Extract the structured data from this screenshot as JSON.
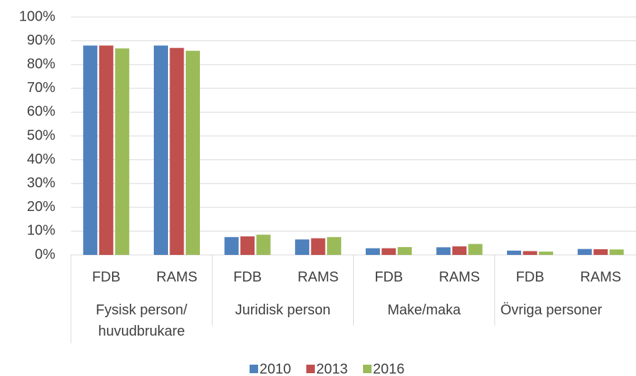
{
  "chart_data": {
    "type": "bar",
    "categories": [
      "FDB",
      "RAMS",
      "FDB",
      "RAMS",
      "FDB",
      "RAMS",
      "FDB",
      "RAMS"
    ],
    "category_groups": [
      "Fysisk person/ huvudbrukare",
      "Juridisk person",
      "Make/maka",
      "Övriga personer"
    ],
    "series": [
      {
        "name": "2010",
        "color": "#4f81bd",
        "values": [
          88,
          88,
          7.5,
          6.5,
          2.8,
          3.2,
          1.8,
          2.5
        ]
      },
      {
        "name": "2013",
        "color": "#c0504d",
        "values": [
          88,
          87,
          7.8,
          7,
          2.8,
          3.6,
          1.6,
          2.4
        ]
      },
      {
        "name": "2016",
        "color": "#9bbb59",
        "values": [
          86.8,
          85.8,
          8.5,
          7.5,
          3.3,
          4.6,
          1.4,
          2.3
        ]
      }
    ],
    "ylim": [
      0,
      100
    ],
    "yticks": [
      {
        "value": 0,
        "label": "0%"
      },
      {
        "value": 10,
        "label": "10%"
      },
      {
        "value": 20,
        "label": "20%"
      },
      {
        "value": 30,
        "label": "30%"
      },
      {
        "value": 40,
        "label": "40%"
      },
      {
        "value": 50,
        "label": "50%"
      },
      {
        "value": 60,
        "label": "60%"
      },
      {
        "value": 70,
        "label": "70%"
      },
      {
        "value": 80,
        "label": "80%"
      },
      {
        "value": 90,
        "label": "90%"
      },
      {
        "value": 100,
        "label": "100%"
      }
    ],
    "grid": true,
    "legend": "bottom"
  }
}
